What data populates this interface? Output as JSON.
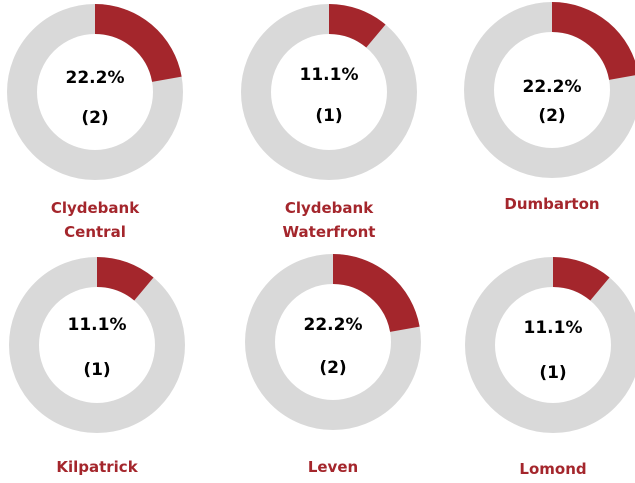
{
  "chart_data": [
    {
      "type": "donut",
      "title": "Clydebank Central",
      "values": [
        22.2
      ],
      "value_labels": [
        "22.2%"
      ],
      "counts": [
        2
      ],
      "count_labels": [
        "(2)"
      ],
      "ylim": [
        0,
        100
      ],
      "color": "#a4262c",
      "track_color": "#d9d9d9"
    },
    {
      "type": "donut",
      "title": "Clydebank Waterfront",
      "values": [
        11.1
      ],
      "value_labels": [
        "11.1%"
      ],
      "counts": [
        1
      ],
      "count_labels": [
        "(1)"
      ],
      "ylim": [
        0,
        100
      ],
      "color": "#a4262c",
      "track_color": "#d9d9d9"
    },
    {
      "type": "donut",
      "title": "Dumbarton",
      "values": [
        22.2
      ],
      "value_labels": [
        "22.2%"
      ],
      "counts": [
        2
      ],
      "count_labels": [
        "(2)"
      ],
      "ylim": [
        0,
        100
      ],
      "color": "#a4262c",
      "track_color": "#d9d9d9"
    },
    {
      "type": "donut",
      "title": "Kilpatrick",
      "values": [
        11.1
      ],
      "value_labels": [
        "11.1%"
      ],
      "counts": [
        1
      ],
      "count_labels": [
        "(1)"
      ],
      "ylim": [
        0,
        100
      ],
      "color": "#a4262c",
      "track_color": "#d9d9d9"
    },
    {
      "type": "donut",
      "title": "Leven",
      "values": [
        22.2
      ],
      "value_labels": [
        "22.2%"
      ],
      "counts": [
        2
      ],
      "count_labels": [
        "(2)"
      ],
      "ylim": [
        0,
        100
      ],
      "color": "#a4262c",
      "track_color": "#d9d9d9"
    },
    {
      "type": "donut",
      "title": "Lomond",
      "values": [
        11.1
      ],
      "value_labels": [
        "11.1%"
      ],
      "counts": [
        1
      ],
      "count_labels": [
        "(1)"
      ],
      "ylim": [
        0,
        100
      ],
      "color": "#a4262c",
      "track_color": "#d9d9d9"
    }
  ]
}
